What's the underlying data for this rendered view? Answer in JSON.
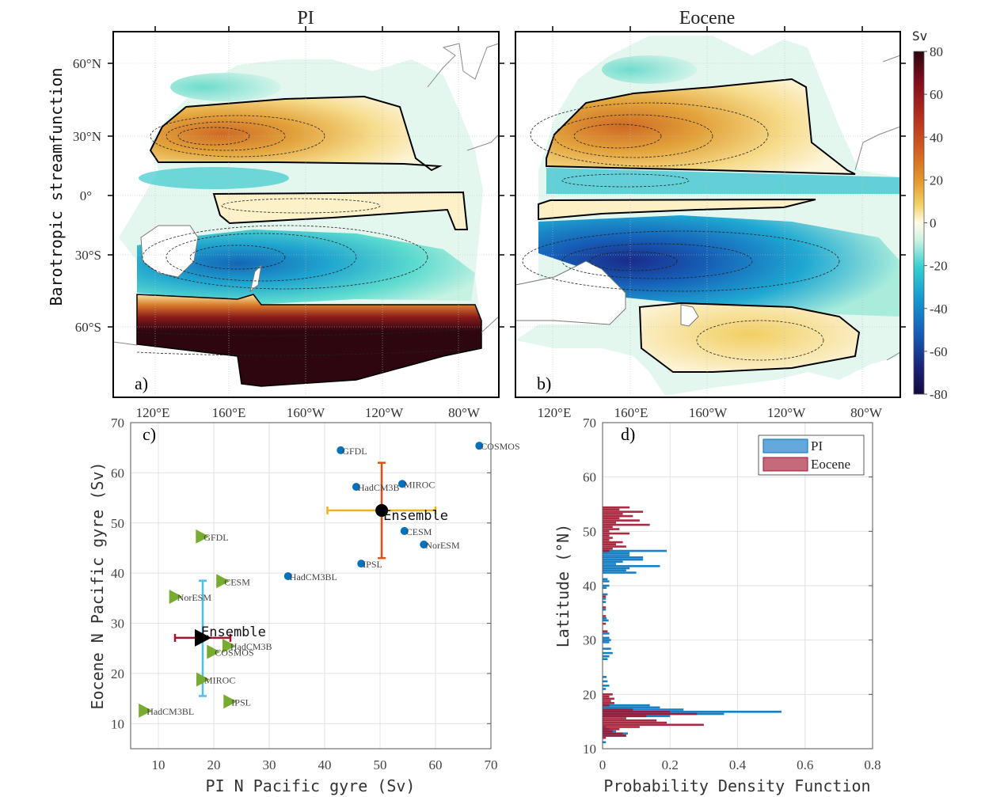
{
  "chart_data": [
    {
      "type": "heatmap",
      "panel": "a)",
      "title": "PI",
      "ylabel": "Barotropic streamfunction",
      "xticks": [
        "120°E",
        "160°E",
        "160°W",
        "120°W",
        "80°W"
      ],
      "yticks": [
        "60°N",
        "30°N",
        "0°",
        "30°S",
        "60°S"
      ],
      "colorbar": {
        "label": "Sv",
        "ticks": [
          "80",
          "60",
          "40",
          "20",
          "0",
          "-20",
          "-40",
          "-60",
          "-80"
        ],
        "range": [
          -80,
          80
        ]
      }
    },
    {
      "type": "heatmap",
      "panel": "b)",
      "title": "Eocene",
      "xticks": [
        "120°E",
        "160°E",
        "160°W",
        "120°W",
        "80°W"
      ],
      "yticks": [
        "60°N",
        "30°N",
        "0°",
        "30°S",
        "60°S"
      ]
    },
    {
      "type": "scatter",
      "panel": "c)",
      "xlabel": "PI N Pacific gyre (Sv)",
      "ylabel": "Eocene N Pacific gyre (Sv)",
      "xlim": [
        5,
        70
      ],
      "ylim": [
        5,
        70
      ],
      "xticks": [
        "10",
        "20",
        "30",
        "40",
        "50",
        "60",
        "70"
      ],
      "yticks": [
        "10",
        "20",
        "30",
        "40",
        "50",
        "60",
        "70"
      ],
      "grid": true,
      "series": [
        {
          "name": "circles",
          "color": "#0072bd",
          "points": [
            {
              "label": "GFDL",
              "x": 42.9,
              "y": 64.5
            },
            {
              "label": "COSMOS",
              "x": 67.9,
              "y": 65.4
            },
            {
              "label": "HadCM3B",
              "x": 45.7,
              "y": 57.2
            },
            {
              "label": "MIROC",
              "x": 54.0,
              "y": 57.8
            },
            {
              "label": "CESM",
              "x": 54.4,
              "y": 48.4
            },
            {
              "label": "NorESM",
              "x": 57.9,
              "y": 45.7
            },
            {
              "label": "IPSL",
              "x": 46.6,
              "y": 41.9
            },
            {
              "label": "HadCM3BL",
              "x": 33.4,
              "y": 39.4
            }
          ],
          "ensemble": {
            "label": "Ensemble",
            "x": 50.3,
            "y": 52.5,
            "xerr": [
              40.5,
              60.0
            ],
            "yerr": [
              43.0,
              62.0
            ],
            "xerr_color": "#edb120",
            "yerr_color": "#d95319"
          }
        },
        {
          "name": "triangles",
          "color": "#77ac30",
          "points": [
            {
              "label": "GFDL",
              "x": 17.9,
              "y": 47.3
            },
            {
              "label": "CESM",
              "x": 21.6,
              "y": 38.4
            },
            {
              "label": "NorESM",
              "x": 13.1,
              "y": 35.3
            },
            {
              "label": "HadCM3B",
              "x": 22.7,
              "y": 25.5
            },
            {
              "label": "COSMOS",
              "x": 19.9,
              "y": 24.3
            },
            {
              "label": "MIROC",
              "x": 18.0,
              "y": 18.8
            },
            {
              "label": "IPSL",
              "x": 22.9,
              "y": 14.4
            },
            {
              "label": "HadCM3BL",
              "x": 7.6,
              "y": 12.6
            }
          ],
          "ensemble": {
            "label": "Ensemble",
            "x": 18.0,
            "y": 27.1,
            "xerr": [
              13.0,
              23.0
            ],
            "yerr": [
              15.5,
              38.5
            ],
            "xerr_color": "#a2142f",
            "yerr_color": "#4dbeee"
          }
        }
      ]
    },
    {
      "type": "bar",
      "orientation": "horizontal",
      "panel": "d)",
      "xlabel": "Probability Density Function",
      "ylabel": "Latitude (°N)",
      "xlim": [
        0,
        0.8
      ],
      "ylim": [
        10,
        70
      ],
      "xticks": [
        "0",
        "0.2",
        "0.4",
        "0.6",
        "0.8"
      ],
      "yticks": [
        "10",
        "20",
        "30",
        "40",
        "50",
        "60",
        "70"
      ],
      "legend": {
        "position": "top-right",
        "entries": [
          "PI",
          "Eocene"
        ]
      },
      "series": [
        {
          "name": "PI",
          "color": "#0072bd",
          "lat": [
            11.2,
            12.4,
            12.8,
            13.2,
            13.6,
            14.0,
            16.0,
            16.4,
            16.8,
            17.2,
            17.6,
            18.0,
            21.0,
            21.6,
            22.4,
            23.2,
            26.5,
            27.0,
            27.6,
            28.4,
            29.6,
            30.0,
            30.4,
            31.2,
            33.6,
            34.0,
            35.6,
            37.0,
            37.6,
            38.4,
            39.6,
            40.0,
            40.8,
            41.2,
            42.4,
            42.8,
            43.2,
            43.6,
            44.0,
            44.4,
            44.8,
            45.2,
            45.6,
            46.0,
            46.4
          ],
          "pdf": [
            0.01,
            0.07,
            0.075,
            0.04,
            0.02,
            0.01,
            0.2,
            0.36,
            0.53,
            0.24,
            0.17,
            0.14,
            0.01,
            0.02,
            0.015,
            0.012,
            0.015,
            0.02,
            0.03,
            0.025,
            0.02,
            0.025,
            0.02,
            0.02,
            0.018,
            0.012,
            0.01,
            0.01,
            0.01,
            0.015,
            0.012,
            0.02,
            0.02,
            0.015,
            0.1,
            0.07,
            0.08,
            0.17,
            0.04,
            0.06,
            0.12,
            0.12,
            0.08,
            0.08,
            0.19
          ]
        },
        {
          "name": "Eocene",
          "color": "#a2142f",
          "lat": [
            12.0,
            12.4,
            12.8,
            13.2,
            13.6,
            14.0,
            14.4,
            14.8,
            15.2,
            15.6,
            16.0,
            16.4,
            16.8,
            17.2,
            18.0,
            18.4,
            18.8,
            19.2,
            19.6,
            20.0,
            31.6,
            33.0,
            34.4,
            36.0,
            38.0,
            46.4,
            46.8,
            47.2,
            47.6,
            48.0,
            48.4,
            48.8,
            49.2,
            49.6,
            50.0,
            50.4,
            50.8,
            51.2,
            51.6,
            52.0,
            52.4,
            52.8,
            53.2,
            53.6,
            54.0,
            54.4
          ],
          "pdf": [
            0.01,
            0.07,
            0.06,
            0.03,
            0.05,
            0.11,
            0.3,
            0.19,
            0.16,
            0.07,
            0.13,
            0.28,
            0.2,
            0.09,
            0.02,
            0.035,
            0.025,
            0.035,
            0.02,
            0.03,
            0.015,
            0.01,
            0.01,
            0.01,
            0.01,
            0.02,
            0.03,
            0.07,
            0.04,
            0.06,
            0.02,
            0.03,
            0.02,
            0.08,
            0.02,
            0.05,
            0.03,
            0.14,
            0.04,
            0.11,
            0.05,
            0.09,
            0.06,
            0.12,
            0.05,
            0.08
          ]
        }
      ]
    }
  ],
  "labels": {
    "title_a": "PI",
    "title_b": "Eocene",
    "panel_a": "a)",
    "panel_b": "b)",
    "panel_c": "c)",
    "panel_d": "d)",
    "map_ylabel": "Barotropic streamfunction",
    "cbar_unit": "Sv",
    "ens_label": "Ensemble"
  }
}
